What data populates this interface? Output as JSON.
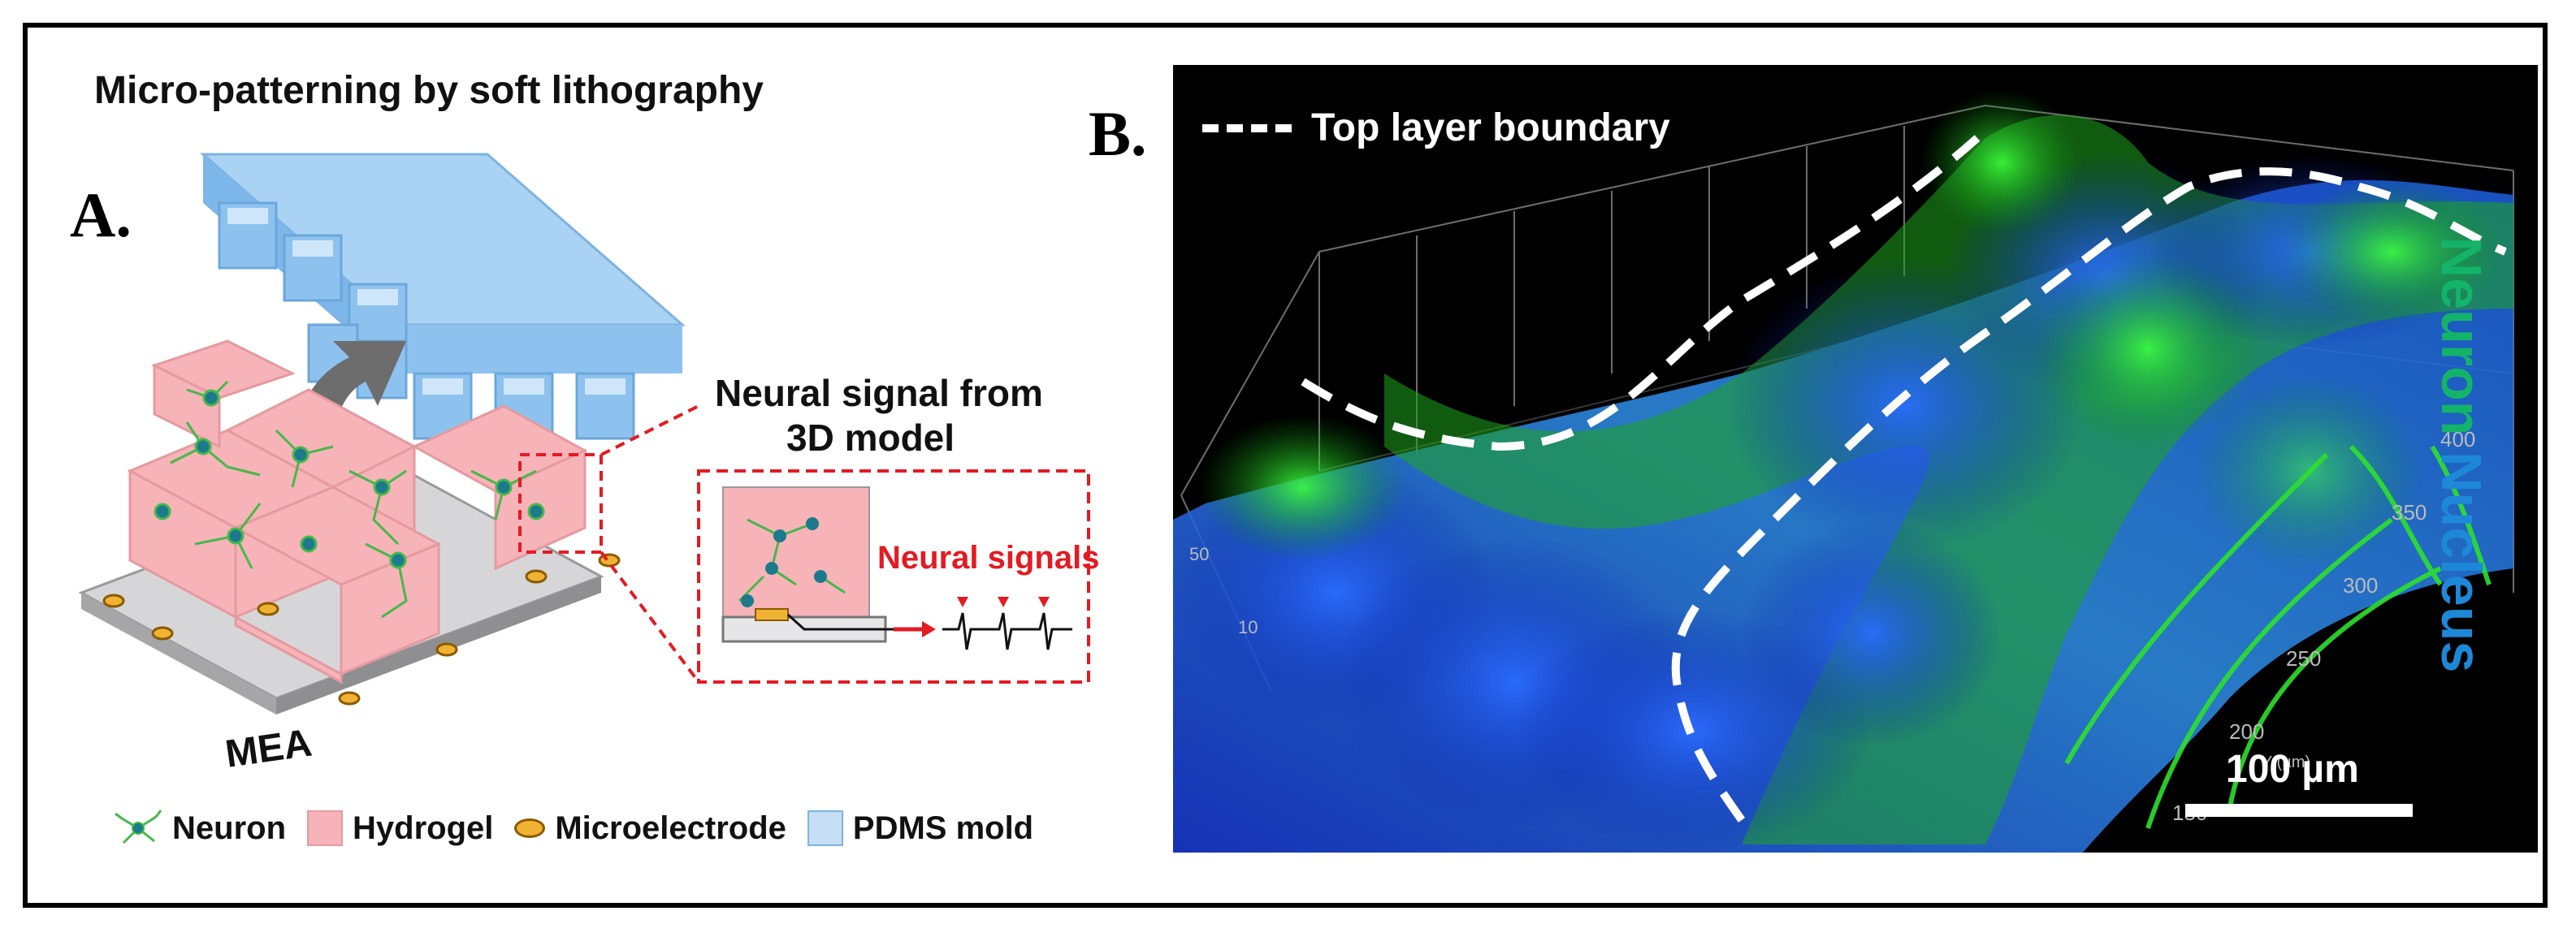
{
  "panel_a": {
    "label": "A.",
    "title": "Micro-patterning by soft lithography",
    "mea_label": "MEA",
    "inset_title_line1": "Neural signal from",
    "inset_title_line2": "3D model",
    "inset_signal_label": "Neural signals",
    "legend": [
      {
        "key": "neuron",
        "label": "Neuron"
      },
      {
        "key": "hydrogel",
        "label": "Hydrogel"
      },
      {
        "key": "microelectrode",
        "label": "Microelectrode"
      },
      {
        "key": "pdms",
        "label": "PDMS mold"
      }
    ],
    "colors": {
      "pdms": "#8ec2ee",
      "hydrogel": "#f6b3b8",
      "neuron": "#46b84a",
      "nucleus": "#1c7a8c",
      "electrode": "#f0b233",
      "signal": "#e31b23",
      "base": "#cfcfd2"
    }
  },
  "panel_b": {
    "label": "B.",
    "boundary_legend": "Top layer boundary",
    "scale_label": "100 µm",
    "stain_neuron": "Neuron",
    "stain_nucleus": "Nucleus",
    "y_axis_ticks": [
      "400",
      "350",
      "300",
      "250",
      "200",
      "150"
    ],
    "y_axis_title": "Y (µm)",
    "left_ticks": [
      "50",
      "10"
    ],
    "colors": {
      "neuron": "#14b36a",
      "nucleus": "#1e88d8",
      "background": "#000000"
    }
  }
}
